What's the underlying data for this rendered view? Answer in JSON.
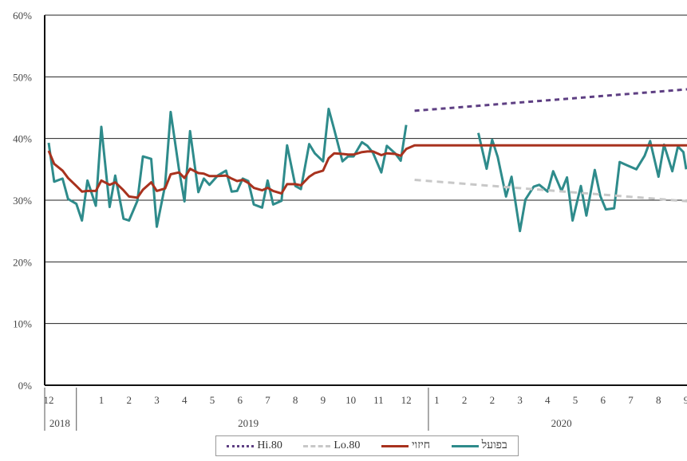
{
  "chart_data": {
    "type": "line",
    "y_ticks": [
      "0%",
      "10%",
      "20%",
      "30%",
      "40%",
      "50%",
      "60%"
    ],
    "ylim": [
      0,
      60
    ],
    "grid": "horizontal",
    "x_month_labels": [
      {
        "label": "12",
        "t": 0.0
      },
      {
        "label": "1",
        "t": 1.9
      },
      {
        "label": "2",
        "t": 2.9
      },
      {
        "label": "3",
        "t": 3.9
      },
      {
        "label": "4",
        "t": 4.9
      },
      {
        "label": "5",
        "t": 5.9
      },
      {
        "label": "6",
        "t": 6.9
      },
      {
        "label": "7",
        "t": 7.9
      },
      {
        "label": "8",
        "t": 8.9
      },
      {
        "label": "9",
        "t": 9.9
      },
      {
        "label": "10",
        "t": 10.9
      },
      {
        "label": "11",
        "t": 11.9
      },
      {
        "label": "12",
        "t": 12.9
      },
      {
        "label": "1",
        "t": 14.0
      },
      {
        "label": "2",
        "t": 15.0
      },
      {
        "label": "2",
        "t": 16.0
      },
      {
        "label": "3",
        "t": 17.0
      },
      {
        "label": "4",
        "t": 18.0
      },
      {
        "label": "5",
        "t": 19.0
      },
      {
        "label": "6",
        "t": 20.0
      },
      {
        "label": "7",
        "t": 21.0
      },
      {
        "label": "8",
        "t": 22.0
      },
      {
        "label": "9",
        "t": 23.0
      }
    ],
    "years": [
      {
        "label": "2018",
        "t": 0.4
      },
      {
        "label": "2019",
        "t": 7.2
      },
      {
        "label": "2020",
        "t": 18.5
      }
    ],
    "year_dividers": [
      1.0,
      13.7
    ],
    "xlim": [
      -0.2,
      23.1
    ],
    "series": [
      {
        "name": "בפועל",
        "color": "#2e8b8b",
        "style": "solid",
        "points": [
          [
            0.0,
            39.3
          ],
          [
            0.2,
            33.0
          ],
          [
            0.5,
            33.5
          ],
          [
            0.7,
            30.2
          ],
          [
            1.0,
            29.4
          ],
          [
            1.2,
            26.7
          ],
          [
            1.4,
            33.2
          ],
          [
            1.7,
            29.1
          ],
          [
            1.9,
            41.9
          ],
          [
            2.2,
            28.9
          ],
          [
            2.4,
            34.0
          ],
          [
            2.7,
            27.0
          ],
          [
            2.9,
            26.7
          ],
          [
            3.2,
            29.9
          ],
          [
            3.4,
            37.1
          ],
          [
            3.7,
            36.7
          ],
          [
            3.9,
            25.7
          ],
          [
            4.2,
            32.4
          ],
          [
            4.4,
            44.3
          ],
          [
            4.7,
            35.0
          ],
          [
            4.9,
            29.8
          ],
          [
            5.1,
            41.2
          ],
          [
            5.4,
            31.3
          ],
          [
            5.6,
            33.5
          ],
          [
            5.8,
            32.5
          ],
          [
            6.1,
            34.0
          ],
          [
            6.4,
            34.8
          ],
          [
            6.6,
            31.4
          ],
          [
            6.8,
            31.5
          ],
          [
            7.0,
            33.5
          ],
          [
            7.2,
            33.1
          ],
          [
            7.4,
            29.3
          ],
          [
            7.7,
            28.8
          ],
          [
            7.9,
            33.2
          ],
          [
            8.1,
            29.3
          ],
          [
            8.4,
            29.9
          ],
          [
            8.6,
            38.9
          ],
          [
            8.9,
            32.3
          ],
          [
            9.1,
            31.8
          ],
          [
            9.4,
            39.1
          ],
          [
            9.6,
            37.6
          ],
          [
            9.9,
            36.3
          ],
          [
            10.1,
            44.8
          ],
          [
            10.3,
            41.5
          ],
          [
            10.6,
            36.3
          ],
          [
            10.8,
            37.1
          ],
          [
            11.0,
            37.1
          ],
          [
            11.3,
            39.4
          ],
          [
            11.5,
            38.8
          ],
          [
            11.7,
            37.7
          ],
          [
            12.0,
            34.5
          ],
          [
            12.2,
            38.8
          ],
          [
            12.5,
            37.6
          ],
          [
            12.7,
            36.4
          ],
          [
            12.9,
            42.2
          ]
        ]
      },
      {
        "name": "בפועל",
        "color": "#2e8b8b",
        "style": "solid",
        "points": [
          [
            15.5,
            40.9
          ],
          [
            15.8,
            35.1
          ],
          [
            16.0,
            39.8
          ],
          [
            16.2,
            37.0
          ],
          [
            16.5,
            30.6
          ],
          [
            16.7,
            33.8
          ],
          [
            17.0,
            25.0
          ],
          [
            17.2,
            30.1
          ],
          [
            17.5,
            32.2
          ],
          [
            17.7,
            32.5
          ],
          [
            18.0,
            31.4
          ],
          [
            18.2,
            34.7
          ],
          [
            18.5,
            31.5
          ],
          [
            18.7,
            33.7
          ],
          [
            18.9,
            26.7
          ],
          [
            19.2,
            32.3
          ],
          [
            19.4,
            27.5
          ],
          [
            19.7,
            34.9
          ],
          [
            19.9,
            30.7
          ],
          [
            20.1,
            28.5
          ],
          [
            20.4,
            28.7
          ],
          [
            20.6,
            36.2
          ],
          [
            20.9,
            35.6
          ],
          [
            21.2,
            35.0
          ],
          [
            21.5,
            37.2
          ],
          [
            21.7,
            39.6
          ],
          [
            22.0,
            33.8
          ],
          [
            22.2,
            39.0
          ],
          [
            22.5,
            34.7
          ],
          [
            22.7,
            38.7
          ],
          [
            22.9,
            37.8
          ],
          [
            23.0,
            35.0
          ]
        ]
      },
      {
        "name": "חיזוי",
        "color": "#a8321e",
        "style": "solid",
        "points": [
          [
            0.0,
            38.0
          ],
          [
            0.2,
            35.9
          ],
          [
            0.5,
            34.8
          ],
          [
            0.7,
            33.6
          ],
          [
            1.0,
            32.3
          ],
          [
            1.2,
            31.4
          ],
          [
            1.4,
            31.5
          ],
          [
            1.7,
            31.5
          ],
          [
            1.9,
            33.2
          ],
          [
            2.2,
            32.5
          ],
          [
            2.4,
            32.9
          ],
          [
            2.7,
            31.6
          ],
          [
            2.9,
            30.6
          ],
          [
            3.2,
            30.4
          ],
          [
            3.4,
            31.7
          ],
          [
            3.7,
            32.9
          ],
          [
            3.9,
            31.5
          ],
          [
            4.2,
            31.9
          ],
          [
            4.4,
            34.2
          ],
          [
            4.7,
            34.5
          ],
          [
            4.9,
            33.6
          ],
          [
            5.1,
            35.1
          ],
          [
            5.4,
            34.4
          ],
          [
            5.6,
            34.3
          ],
          [
            5.8,
            33.9
          ],
          [
            6.1,
            33.9
          ],
          [
            6.4,
            34.0
          ],
          [
            6.6,
            33.5
          ],
          [
            6.8,
            33.1
          ],
          [
            7.0,
            33.3
          ],
          [
            7.2,
            32.8
          ],
          [
            7.4,
            32.0
          ],
          [
            7.7,
            31.6
          ],
          [
            7.9,
            32.0
          ],
          [
            8.1,
            31.5
          ],
          [
            8.4,
            31.1
          ],
          [
            8.6,
            32.6
          ],
          [
            8.9,
            32.6
          ],
          [
            9.1,
            32.4
          ],
          [
            9.4,
            33.8
          ],
          [
            9.6,
            34.4
          ],
          [
            9.9,
            34.8
          ],
          [
            10.1,
            36.8
          ],
          [
            10.3,
            37.6
          ],
          [
            10.6,
            37.5
          ],
          [
            10.8,
            37.4
          ],
          [
            11.0,
            37.4
          ],
          [
            11.3,
            37.8
          ],
          [
            11.5,
            37.9
          ],
          [
            11.7,
            37.9
          ],
          [
            12.0,
            37.3
          ],
          [
            12.2,
            37.6
          ],
          [
            12.5,
            37.5
          ],
          [
            12.7,
            37.2
          ],
          [
            12.9,
            38.3
          ],
          [
            13.2,
            38.9
          ],
          [
            23.1,
            38.9
          ]
        ]
      },
      {
        "name": "Lo.80",
        "color": "#c8c8c8",
        "style": "dashed",
        "points": [
          [
            13.2,
            33.3
          ],
          [
            23.1,
            29.8
          ]
        ]
      },
      {
        "name": "Hi.80",
        "color": "#5e3f83",
        "style": "dotted",
        "points": [
          [
            13.2,
            44.5
          ],
          [
            23.1,
            48.0
          ]
        ]
      }
    ],
    "legend": [
      {
        "label": "בפועל",
        "color": "#2e8b8b",
        "style": "solid"
      },
      {
        "label": "חיזוי",
        "color": "#a8321e",
        "style": "solid"
      },
      {
        "label": "Lo.80",
        "color": "#c8c8c8",
        "style": "dashed"
      },
      {
        "label": "Hi.80",
        "color": "#5e3f83",
        "style": "dotted"
      }
    ],
    "legend_placement": "bottom"
  }
}
